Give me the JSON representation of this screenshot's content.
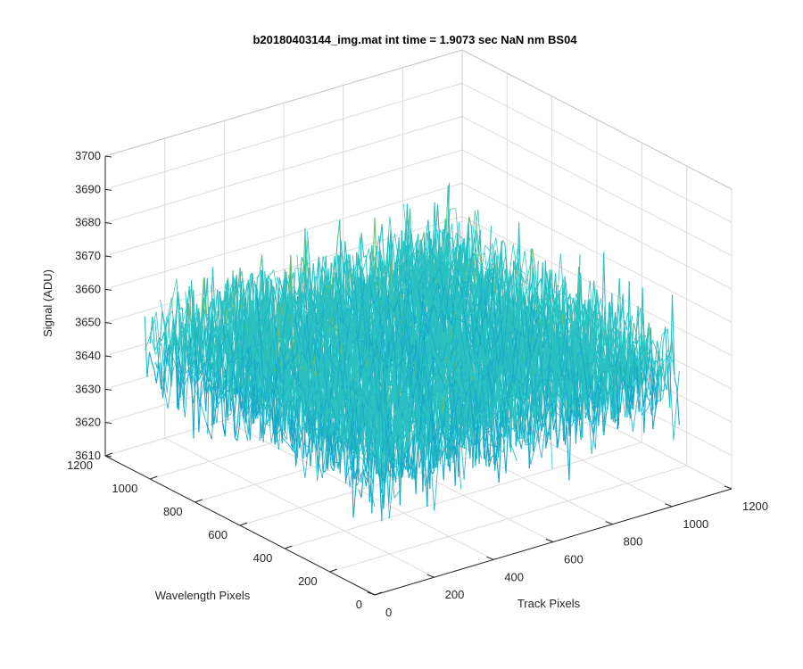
{
  "chart_data": {
    "type": "surface",
    "title": "b20180403144_img.mat int time = 1.9073 sec  NaN nm BS04",
    "xlabel": "Track Pixels",
    "ylabel": "Wavelength Pixels",
    "zlabel": "Signal (ADU)",
    "xlim": [
      0,
      1200
    ],
    "ylim": [
      0,
      1200
    ],
    "zlim": [
      3610,
      3700
    ],
    "x_ticks": [
      "0",
      "200",
      "400",
      "600",
      "800",
      "1000",
      "1200"
    ],
    "y_ticks": [
      "0",
      "200",
      "400",
      "600",
      "800",
      "1000",
      "1200"
    ],
    "z_ticks": [
      "3610",
      "3620",
      "3630",
      "3640",
      "3650",
      "3660",
      "3670",
      "3680",
      "3690",
      "3700"
    ],
    "data_extent": {
      "x": [
        0,
        1024
      ],
      "y": [
        0,
        1024
      ]
    },
    "signal_mean": 3650,
    "signal_range": [
      3615,
      3695
    ],
    "colormap": [
      "#0072BD",
      "#16A9C9",
      "#2BC1C1",
      "#6CC070",
      "#EDB120"
    ],
    "grid": true
  }
}
